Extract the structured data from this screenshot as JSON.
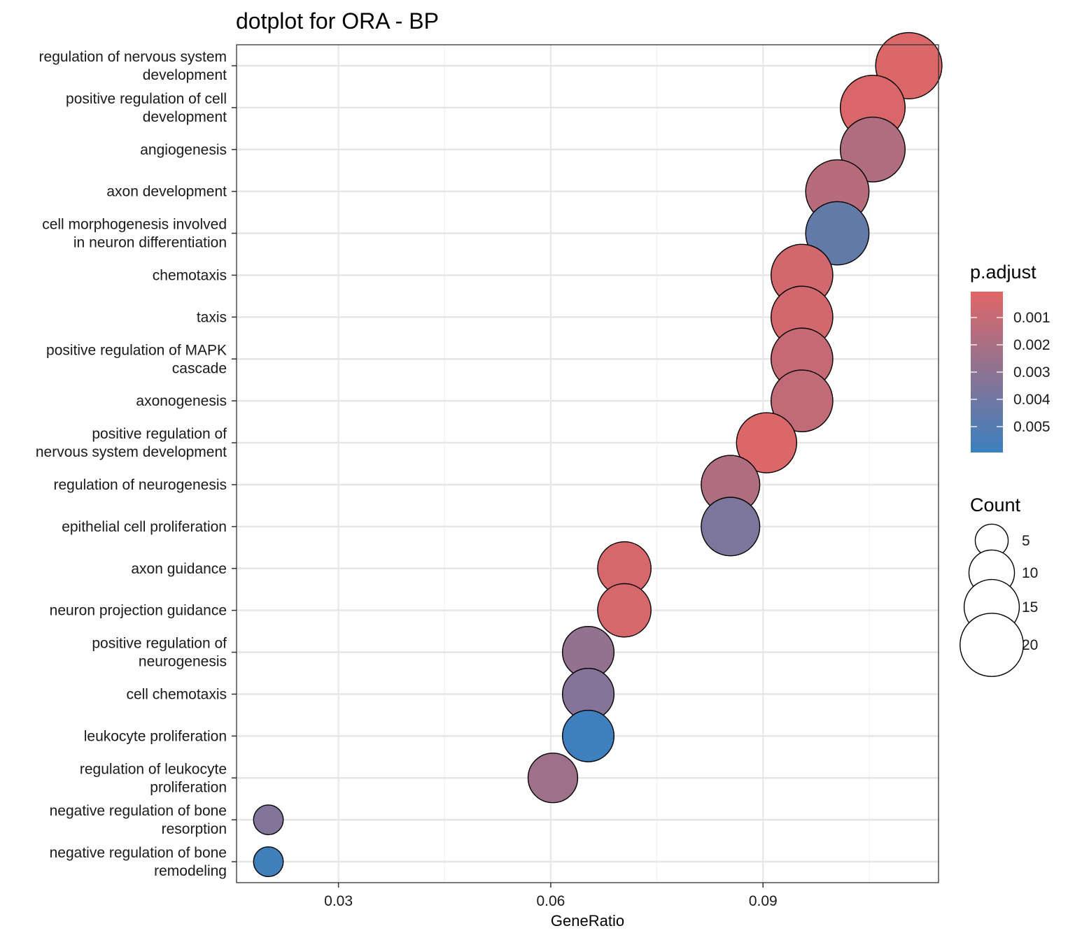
{
  "chart_data": {
    "type": "scatter",
    "title": "dotplot for ORA - BP",
    "xlabel": "GeneRatio",
    "ylabel": "",
    "xlim": [
      0.0156,
      0.1148
    ],
    "x_ticks": [
      0.03,
      0.06,
      0.09
    ],
    "x_tick_labels": [
      "0.03",
      "0.06",
      "0.09"
    ],
    "grid": true,
    "series": [
      {
        "points": [
          {
            "term": [
              "regulation of nervous system",
              "development"
            ],
            "x": 0.1106,
            "count": 22,
            "p_adjust": 0.0002
          },
          {
            "term": [
              "positive regulation of cell",
              "development"
            ],
            "x": 0.1055,
            "count": 21,
            "p_adjust": 0.0003
          },
          {
            "term": [
              "angiogenesis"
            ],
            "x": 0.1055,
            "count": 21,
            "p_adjust": 0.0018
          },
          {
            "term": [
              "axon development"
            ],
            "x": 0.1005,
            "count": 20,
            "p_adjust": 0.0015
          },
          {
            "term": [
              "cell morphogenesis involved",
              "in neuron differentiation"
            ],
            "x": 0.1005,
            "count": 20,
            "p_adjust": 0.0045
          },
          {
            "term": [
              "chemotaxis"
            ],
            "x": 0.0955,
            "count": 19,
            "p_adjust": 0.0006
          },
          {
            "term": [
              "taxis"
            ],
            "x": 0.0955,
            "count": 19,
            "p_adjust": 0.0006
          },
          {
            "term": [
              "positive regulation of MAPK",
              "cascade"
            ],
            "x": 0.0955,
            "count": 19,
            "p_adjust": 0.001
          },
          {
            "term": [
              "axonogenesis"
            ],
            "x": 0.0955,
            "count": 19,
            "p_adjust": 0.0012
          },
          {
            "term": [
              "positive regulation of",
              "nervous system development"
            ],
            "x": 0.0905,
            "count": 18,
            "p_adjust": 0.0002
          },
          {
            "term": [
              "regulation of neurogenesis"
            ],
            "x": 0.0854,
            "count": 17,
            "p_adjust": 0.0018
          },
          {
            "term": [
              "epithelial cell proliferation"
            ],
            "x": 0.0854,
            "count": 17,
            "p_adjust": 0.0036
          },
          {
            "term": [
              "axon guidance"
            ],
            "x": 0.0704,
            "count": 14,
            "p_adjust": 0.0004
          },
          {
            "term": [
              "neuron projection guidance"
            ],
            "x": 0.0704,
            "count": 14,
            "p_adjust": 0.0004
          },
          {
            "term": [
              "positive regulation of",
              "neurogenesis"
            ],
            "x": 0.0653,
            "count": 13,
            "p_adjust": 0.0028
          },
          {
            "term": [
              "cell chemotaxis"
            ],
            "x": 0.0653,
            "count": 13,
            "p_adjust": 0.0033
          },
          {
            "term": [
              "leukocyte proliferation"
            ],
            "x": 0.0653,
            "count": 13,
            "p_adjust": 0.0058
          },
          {
            "term": [
              "regulation of leukocyte",
              "proliferation"
            ],
            "x": 0.0603,
            "count": 12,
            "p_adjust": 0.0024
          },
          {
            "term": [
              "negative regulation of bone",
              "resorption"
            ],
            "x": 0.0201,
            "count": 4,
            "p_adjust": 0.0034
          },
          {
            "term": [
              "negative regulation of bone",
              "remodeling"
            ],
            "x": 0.0201,
            "count": 4,
            "p_adjust": 0.0057
          }
        ]
      }
    ],
    "color_legend": {
      "title": "p.adjust",
      "high_color": "#e06666",
      "low_color": "#3a80bf",
      "range": [
        5e-05,
        0.00595
      ],
      "tick_values": [
        0.001,
        0.002,
        0.003,
        0.004,
        0.005
      ],
      "tick_labels": [
        "0.001",
        "0.002",
        "0.003",
        "0.004",
        "0.005"
      ],
      "placement": "right"
    },
    "size_legend": {
      "title": "Count",
      "values": [
        5,
        10,
        15,
        20
      ],
      "labels": [
        "5",
        "10",
        "15",
        "20"
      ],
      "placement": "right"
    }
  }
}
